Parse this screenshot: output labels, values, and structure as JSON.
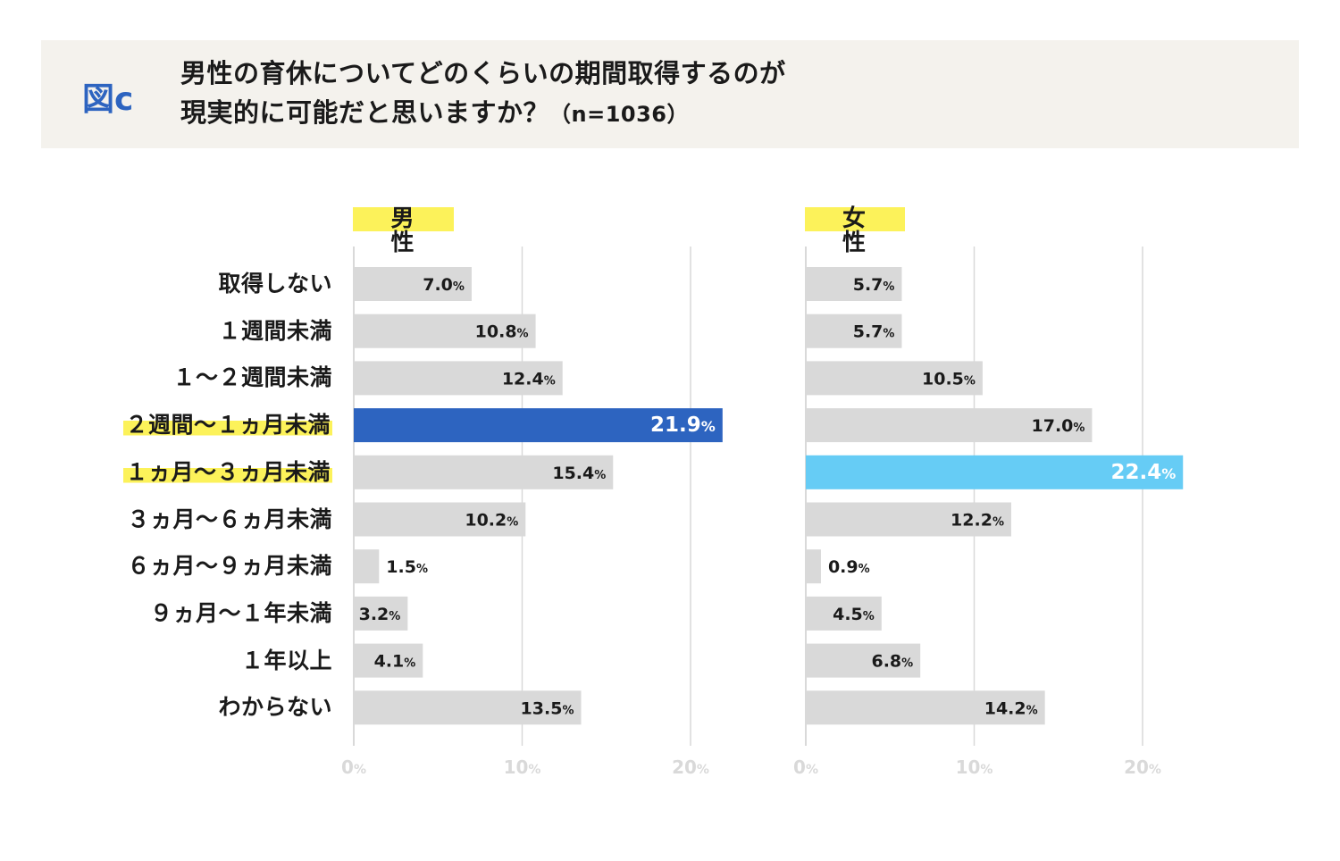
{
  "header": {
    "figure_label": "図c",
    "title_line1": "男性の育休についてどのくらいの期間取得するのが",
    "title_line2": "現実的に可能だと思いますか？",
    "sample_size": "（n=1036）"
  },
  "colors": {
    "default_bar": "#d9d9d9",
    "male_highlight": "#2d64c0",
    "female_highlight": "#66ccf5",
    "label_highlight": "#fcf25a",
    "gridline": "#d9d9d9",
    "tick_label": "#d9d9d9"
  },
  "chart_data": {
    "type": "bar",
    "orientation": "horizontal",
    "title": "男性の育休についてどのくらいの期間取得するのが現実的に可能だと思いますか？（n=1036）",
    "categories": [
      "取得しない",
      "１週間未満",
      "１～２週間未満",
      "２週間～１ヵ月未満",
      "１ヵ月～３ヵ月未満",
      "３ヵ月～６ヵ月未満",
      "６ヵ月～９ヵ月未満",
      "９ヵ月～１年未満",
      "１年以上",
      "わからない"
    ],
    "highlighted_categories": [
      "２週間～１ヵ月未満",
      "１ヵ月～３ヵ月未満"
    ],
    "xlim": [
      0,
      25
    ],
    "xticks": [
      0,
      10,
      20
    ],
    "xtick_labels": [
      "0%",
      "10%",
      "20%"
    ],
    "unit": "%",
    "series": [
      {
        "name": "男性",
        "display_name": "男 性",
        "values": [
          7.0,
          10.8,
          12.4,
          21.9,
          15.4,
          10.2,
          1.5,
          3.2,
          4.1,
          13.5
        ],
        "highlight_index": 3
      },
      {
        "name": "女性",
        "display_name": "女 性",
        "values": [
          5.7,
          5.7,
          10.5,
          17.0,
          22.4,
          12.2,
          0.9,
          4.5,
          6.8,
          14.2
        ],
        "highlight_index": 4
      }
    ]
  }
}
